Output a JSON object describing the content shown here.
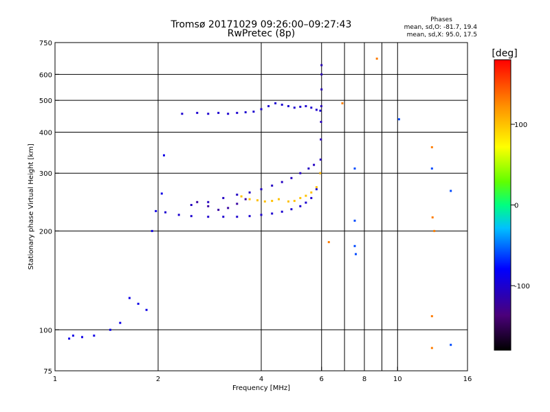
{
  "chart_data": {
    "type": "scatter",
    "title": "Tromsø 20171029 09:26:00–09:27:43",
    "subtitle": "RwPretec (8p)",
    "xlabel": "Frequency [MHz]",
    "ylabel": "Stationary phase Virtual Height [km]",
    "x_scale": "log",
    "y_scale": "log",
    "xlim": [
      1,
      16
    ],
    "ylim": [
      75,
      750
    ],
    "x_ticks": [
      1,
      2,
      4,
      6,
      8,
      10,
      16
    ],
    "x_tick_labels": [
      "1",
      "2",
      "4",
      "6",
      "8",
      "10",
      "16"
    ],
    "x_minor_ticks": [
      7,
      9
    ],
    "y_ticks": [
      75,
      100,
      200,
      300,
      400,
      500,
      600,
      750
    ],
    "y_tick_labels": [
      "75",
      "100",
      "200",
      "300",
      "400",
      "500",
      "600",
      "750"
    ],
    "grid": true,
    "phase_stats": {
      "heading": "Phases",
      "line_o": "mean, sd,O: -81.7, 19.4",
      "line_x": "mean, sd,X:  95.0, 17.5"
    },
    "colorbar": {
      "label": "[deg]",
      "range": [
        -180,
        180
      ],
      "ticks": [
        -100,
        0,
        100
      ],
      "tick_labels": [
        "-100",
        "0",
        "100"
      ]
    },
    "series": [
      {
        "phase": -100,
        "x": [
          2.35,
          2.6,
          2.8,
          3.0,
          3.2,
          3.4,
          3.6,
          3.8,
          4.0,
          4.2,
          4.4,
          4.6,
          4.8,
          5.0,
          5.2,
          5.4,
          5.6,
          5.8,
          5.95
        ],
        "y": [
          455,
          458,
          455,
          458,
          455,
          458,
          460,
          462,
          470,
          480,
          490,
          485,
          480,
          475,
          478,
          480,
          475,
          468,
          465
        ]
      },
      {
        "phase": -100,
        "x": [
          2.1,
          2.3,
          2.5,
          2.8,
          3.1,
          3.4,
          3.7,
          4.0,
          4.3,
          4.6,
          4.9,
          5.2,
          5.4,
          5.6,
          5.8,
          5.95
        ],
        "y": [
          228,
          224,
          222,
          221,
          221,
          221,
          222,
          224,
          226,
          229,
          233,
          238,
          244,
          252,
          268,
          300
        ]
      },
      {
        "phase": -110,
        "x": [
          5.96,
          5.97,
          5.98,
          5.99,
          6.0,
          6.0,
          6.0
        ],
        "y": [
          330,
          380,
          430,
          480,
          540,
          600,
          640
        ]
      },
      {
        "phase": -105,
        "x": [
          2.5,
          2.8,
          3.1,
          3.4,
          3.7,
          4.0,
          4.3,
          4.6,
          4.9,
          5.2,
          5.5,
          5.7
        ],
        "y": [
          240,
          245,
          252,
          258,
          262,
          268,
          275,
          282,
          290,
          300,
          310,
          318
        ]
      },
      {
        "phase": 100,
        "x": [
          3.5,
          3.7,
          3.9,
          4.1,
          4.3,
          4.5,
          4.8,
          5.0,
          5.2,
          5.4,
          5.6,
          5.8,
          5.95
        ],
        "y": [
          255,
          250,
          248,
          246,
          247,
          250,
          246,
          247,
          252,
          256,
          262,
          272,
          300
        ]
      },
      {
        "phase": -90,
        "x": [
          1.1,
          1.13,
          1.2,
          1.3,
          1.45,
          1.55,
          1.65,
          1.75,
          1.85,
          1.92,
          1.97,
          2.05,
          2.08
        ],
        "y": [
          94,
          96,
          95,
          96,
          100,
          105,
          125,
          120,
          115,
          200,
          230,
          260,
          340
        ]
      },
      {
        "phase": -120,
        "x": [
          2.6,
          2.8,
          3.0,
          3.2,
          3.4,
          3.6
        ],
        "y": [
          245,
          238,
          232,
          235,
          242,
          250
        ]
      },
      {
        "phase": -60,
        "x": [
          7.5,
          7.5,
          7.5,
          7.55,
          10.1,
          12.6,
          14.3,
          14.3
        ],
        "y": [
          310,
          215,
          180,
          170,
          438,
          310,
          90,
          265
        ]
      },
      {
        "phase": 130,
        "x": [
          6.3,
          6.9,
          8.7,
          12.6,
          12.65,
          12.8,
          12.6,
          12.6
        ],
        "y": [
          185,
          490,
          670,
          360,
          220,
          200,
          110,
          88
        ]
      }
    ]
  }
}
